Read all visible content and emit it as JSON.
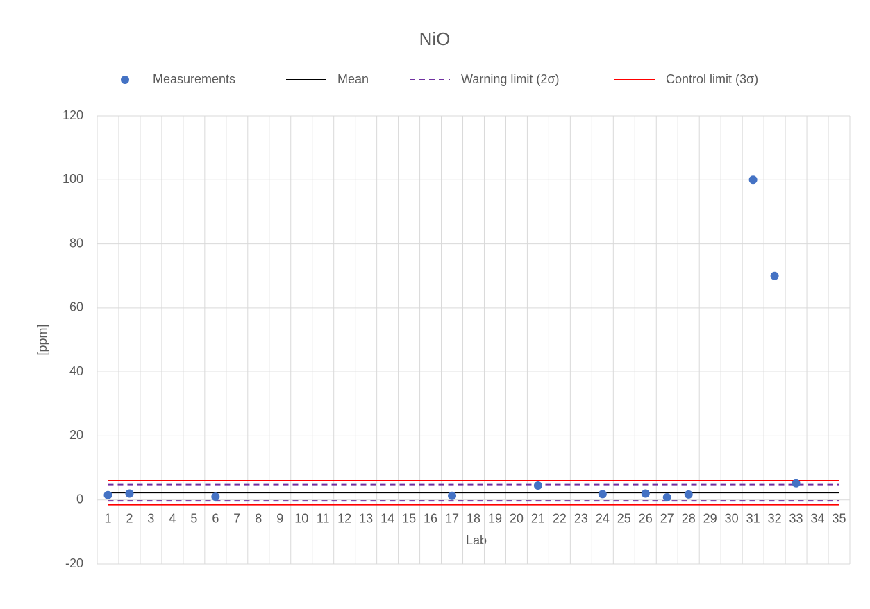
{
  "chart_data": {
    "type": "scatter",
    "title": "NiO",
    "x_label": "Lab",
    "y_label": "[ppm]",
    "categories": [
      "1",
      "2",
      "3",
      "4",
      "5",
      "6",
      "7",
      "8",
      "9",
      "10",
      "11",
      "12",
      "13",
      "14",
      "15",
      "16",
      "17",
      "18",
      "19",
      "20",
      "21",
      "22",
      "23",
      "24",
      "25",
      "26",
      "27",
      "28",
      "29",
      "30",
      "31",
      "32",
      "33",
      "34",
      "35"
    ],
    "ylim": [
      -20,
      120
    ],
    "yticks": [
      -20,
      0,
      20,
      40,
      60,
      80,
      100,
      120
    ],
    "grid": true,
    "series": [
      {
        "name": "Measurements",
        "kind": "points",
        "color": "#4472c4",
        "values": [
          1.5,
          2,
          null,
          null,
          null,
          1,
          null,
          null,
          null,
          null,
          null,
          null,
          null,
          null,
          null,
          null,
          1.3,
          null,
          null,
          null,
          4.5,
          null,
          null,
          1.8,
          null,
          2,
          0.8,
          1.7,
          null,
          null,
          100,
          70,
          5.2,
          null,
          null
        ]
      },
      {
        "name": "Mean",
        "kind": "line",
        "color": "#000000",
        "values": [
          2.3,
          2.3,
          2.3,
          2.3,
          2.3,
          2.3,
          2.3,
          2.3,
          2.3,
          2.3,
          2.3,
          2.3,
          2.3,
          2.3,
          2.3,
          2.3,
          2.3,
          2.3,
          2.3,
          2.3,
          2.3,
          2.3,
          2.3,
          2.3,
          2.3,
          2.3,
          2.3,
          2.3,
          2.3,
          2.3,
          2.3,
          2.3,
          2.3,
          2.3,
          2.3
        ]
      },
      {
        "name": "Warning limit (2σ)",
        "kind": "line",
        "dashed": true,
        "color": "#7030a0",
        "values": [
          4.8,
          4.8,
          4.8,
          4.8,
          4.8,
          4.8,
          4.8,
          4.8,
          4.8,
          4.8,
          4.8,
          4.8,
          4.8,
          4.8,
          4.8,
          4.8,
          4.8,
          4.8,
          4.8,
          4.8,
          4.8,
          4.8,
          4.8,
          4.8,
          4.8,
          4.8,
          4.8,
          4.8,
          4.8,
          4.8,
          4.8,
          4.8,
          4.8,
          4.8,
          4.8
        ],
        "lower_values": [
          -0.3,
          -0.3,
          -0.3,
          -0.3,
          -0.3,
          -0.3,
          -0.3,
          -0.3,
          -0.3,
          -0.3,
          -0.3,
          -0.3,
          -0.3,
          -0.3,
          -0.3,
          -0.3,
          -0.3,
          -0.3,
          -0.3,
          -0.3,
          -0.3,
          -0.3,
          -0.3,
          -0.3,
          -0.3,
          -0.3,
          -0.3,
          -0.3,
          -0.3,
          -0.3,
          -0.3,
          -0.3,
          -0.3,
          -0.3,
          -0.3
        ]
      },
      {
        "name": "Control limit (3σ)",
        "kind": "line",
        "color": "#ff0000",
        "values": [
          6,
          6,
          6,
          6,
          6,
          6,
          6,
          6,
          6,
          6,
          6,
          6,
          6,
          6,
          6,
          6,
          6,
          6,
          6,
          6,
          6,
          6,
          6,
          6,
          6,
          6,
          6,
          6,
          6,
          6,
          6,
          6,
          6,
          6,
          6
        ],
        "lower_values": [
          -1.5,
          -1.5,
          -1.5,
          -1.5,
          -1.5,
          -1.5,
          -1.5,
          -1.5,
          -1.5,
          -1.5,
          -1.5,
          -1.5,
          -1.5,
          -1.5,
          -1.5,
          -1.5,
          -1.5,
          -1.5,
          -1.5,
          -1.5,
          -1.5,
          -1.5,
          -1.5,
          -1.5,
          -1.5,
          -1.5,
          -1.5,
          -1.5,
          -1.5,
          -1.5,
          -1.5,
          -1.5,
          -1.5,
          -1.5,
          -1.5
        ]
      }
    ]
  }
}
